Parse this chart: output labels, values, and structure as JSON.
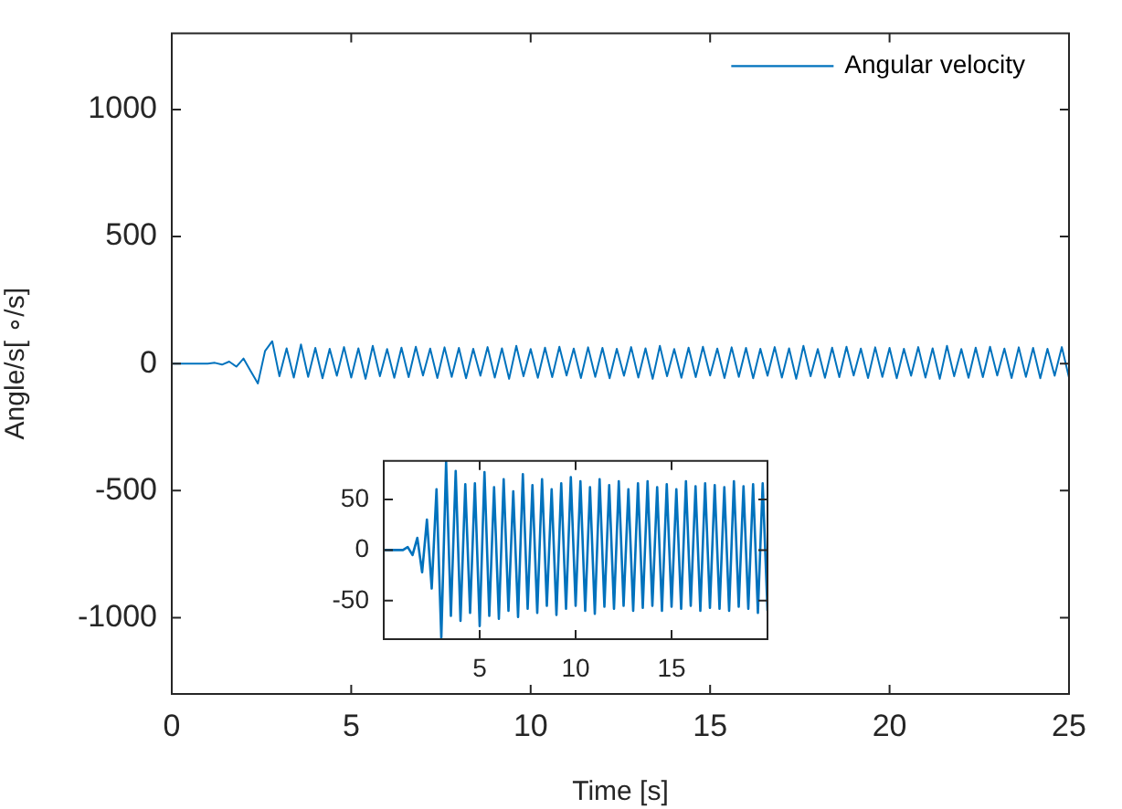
{
  "chart_data": [
    {
      "type": "line",
      "xlabel": "Time [s]",
      "ylabel": "Angle/s[ ∘/s]",
      "xlim": [
        0,
        25
      ],
      "ylim": [
        -1300,
        1300
      ],
      "xticks": [
        0,
        5,
        10,
        15,
        20,
        25
      ],
      "yticks": [
        -1000,
        -500,
        0,
        500,
        1000
      ],
      "legend": "top right",
      "marker": "none",
      "line_style": "solid",
      "series": [
        {
          "name": "Angular velocity",
          "color": "#0072bd",
          "x": [
            0,
            1,
            1.2,
            1.4,
            1.6,
            1.8,
            2,
            2.2,
            2.4,
            2.6,
            2.8,
            3,
            3.2,
            3.4,
            3.6,
            3.8,
            4,
            4.2,
            4.4,
            4.6,
            4.8,
            5,
            5.2,
            5.4,
            5.6,
            5.8,
            6,
            6.2,
            6.4,
            6.6,
            6.8,
            7,
            7.2,
            7.4,
            7.6,
            7.8,
            8,
            8.2,
            8.4,
            8.6,
            8.8,
            9,
            9.2,
            9.4,
            9.6,
            9.8,
            10,
            10.2,
            10.4,
            10.6,
            10.8,
            11,
            11.2,
            11.4,
            11.6,
            11.8,
            12,
            12.2,
            12.4,
            12.6,
            12.8,
            13,
            13.2,
            13.4,
            13.6,
            13.8,
            14,
            14.2,
            14.4,
            14.6,
            14.8,
            15,
            15.2,
            15.4,
            15.6,
            15.8,
            16,
            16.2,
            16.4,
            16.6,
            16.8,
            17,
            17.2,
            17.4,
            17.6,
            17.8,
            18,
            18.2,
            18.4,
            18.6,
            18.8,
            19,
            19.2,
            19.4,
            19.6,
            19.8,
            20,
            20.2,
            20.4,
            20.6,
            20.8,
            21,
            21.2,
            21.4,
            21.6,
            21.8,
            22,
            22.2,
            22.4,
            22.6,
            22.8,
            23,
            23.2,
            23.4,
            23.6,
            23.8,
            24,
            24.2,
            24.4,
            24.6,
            24.8,
            25
          ],
          "values": [
            0,
            0,
            3,
            -4,
            8,
            -12,
            20,
            -30,
            -78,
            50,
            88,
            -50,
            60,
            -55,
            75,
            -52,
            62,
            -58,
            58,
            -48,
            65,
            -55,
            60,
            -60,
            70,
            -50,
            57,
            -56,
            63,
            -53,
            66,
            -47,
            59,
            -57,
            64,
            -52,
            62,
            -58,
            58,
            -48,
            65,
            -55,
            60,
            -60,
            70,
            -50,
            57,
            -56,
            63,
            -53,
            66,
            -47,
            59,
            -57,
            64,
            -52,
            62,
            -58,
            58,
            -48,
            65,
            -55,
            60,
            -60,
            70,
            -50,
            57,
            -56,
            63,
            -53,
            66,
            -47,
            59,
            -57,
            64,
            -52,
            62,
            -58,
            58,
            -48,
            65,
            -55,
            60,
            -60,
            70,
            -50,
            57,
            -56,
            63,
            -53,
            66,
            -47,
            59,
            -57,
            64,
            -52,
            62,
            -58,
            58,
            -48,
            65,
            -55,
            60,
            -60,
            70,
            -50,
            57,
            -56,
            63,
            -53,
            66,
            -47,
            59,
            -57,
            64,
            -52,
            62,
            -58,
            58,
            -48,
            65,
            -55
          ]
        }
      ]
    },
    {
      "type": "line",
      "xlim": [
        0,
        20
      ],
      "ylim": [
        -88,
        88
      ],
      "xticks": [
        5,
        10,
        15
      ],
      "yticks": [
        -50,
        0,
        50
      ],
      "marker": "none",
      "line_style": "solid",
      "series": [
        {
          "color": "#0072bd",
          "x": [
            0,
            1,
            1.25,
            1.5,
            1.75,
            2,
            2.25,
            2.5,
            2.75,
            3,
            3.25,
            3.5,
            3.75,
            4,
            4.25,
            4.5,
            4.75,
            5,
            5.25,
            5.5,
            5.75,
            6,
            6.25,
            6.5,
            6.75,
            7,
            7.25,
            7.5,
            7.75,
            8,
            8.25,
            8.5,
            8.75,
            9,
            9.25,
            9.5,
            9.75,
            10,
            10.25,
            10.5,
            10.75,
            11,
            11.25,
            11.5,
            11.75,
            12,
            12.25,
            12.5,
            12.75,
            13,
            13.25,
            13.5,
            13.75,
            14,
            14.25,
            14.5,
            14.75,
            15,
            15.25,
            15.5,
            15.75,
            16,
            16.25,
            16.5,
            16.75,
            17,
            17.25,
            17.5,
            17.75,
            18,
            18.25,
            18.5,
            18.75,
            19,
            19.25,
            19.5,
            19.75,
            20
          ],
          "values": [
            0,
            0,
            3,
            -5,
            12,
            -22,
            30,
            -38,
            60,
            -87,
            87,
            -65,
            78,
            -70,
            65,
            -62,
            66,
            -75,
            77,
            -65,
            62,
            -68,
            70,
            -60,
            58,
            -66,
            75,
            -58,
            64,
            -62,
            70,
            -55,
            60,
            -64,
            66,
            -58,
            72,
            -55,
            68,
            -60,
            62,
            -63,
            70,
            -56,
            64,
            -58,
            68,
            -55,
            60,
            -60,
            66,
            -57,
            68,
            -55,
            62,
            -60,
            65,
            -56,
            60,
            -58,
            68,
            -55,
            63,
            -60,
            66,
            -57,
            64,
            -58,
            62,
            -60,
            68,
            -56,
            63,
            -58,
            65,
            -62,
            66,
            -60
          ]
        }
      ]
    }
  ]
}
